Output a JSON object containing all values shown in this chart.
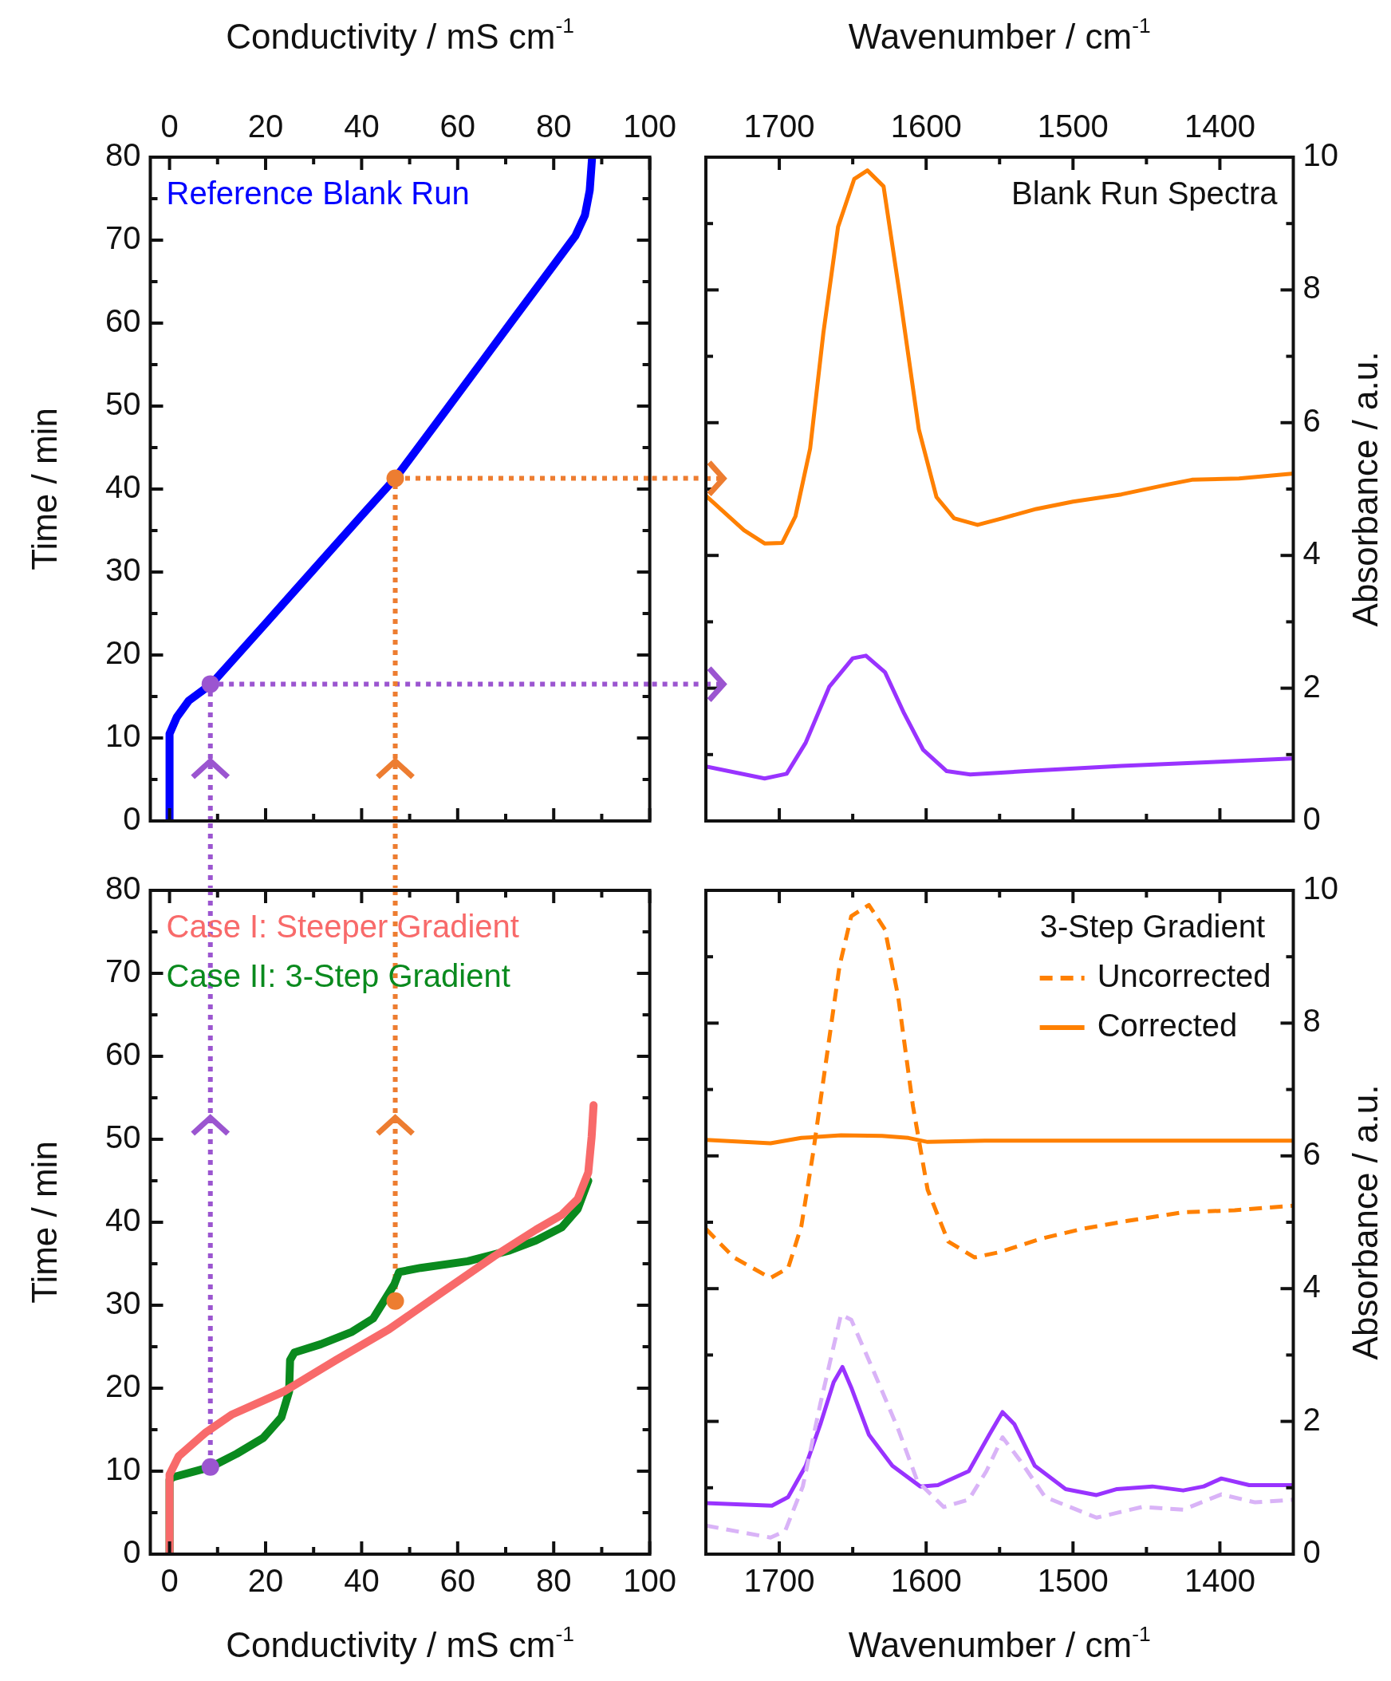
{
  "chart_data": [
    {
      "type": "line",
      "xlabel": "Conductivity / mS cm$^{-1}$",
      "ylabel": "Time / min",
      "xlim": [
        -4,
        100
      ],
      "xticks": [
        0,
        {
          "value": 10,
          "label": null
        },
        20,
        {
          "value": 30,
          "label": null
        },
        40,
        {
          "value": 50,
          "label": null
        },
        60,
        {
          "value": 70,
          "label": null
        },
        80,
        {
          "value": 90,
          "label": null
        },
        100
      ],
      "ylim": [
        0,
        80
      ],
      "yticks": [
        0,
        {
          "value": 5,
          "label": null
        },
        10,
        {
          "value": 15,
          "label": null
        },
        20,
        {
          "value": 25,
          "label": null
        },
        30,
        {
          "value": 35,
          "label": null
        },
        40,
        {
          "value": 45,
          "label": null
        },
        50,
        {
          "value": 55,
          "label": null
        },
        60,
        {
          "value": 65,
          "label": null
        },
        70,
        {
          "value": 75,
          "label": null
        },
        80
      ],
      "legend": "top left",
      "series": [
        {
          "name": "Reference Blank Run",
          "color": "#0000ff",
          "x": [
            0,
            0,
            1.5,
            4,
            8.7,
            20,
            30,
            40,
            47,
            55,
            65,
            71,
            80,
            84.5,
            86.5,
            87.5,
            88
          ],
          "values": [
            0,
            10.5,
            12.5,
            14.5,
            16.5,
            23.8,
            30.3,
            36.8,
            41.3,
            47.5,
            55.3,
            60,
            67,
            70.5,
            73,
            76,
            80
          ]
        },
        {
          "type": "scatter",
          "marker": "circle",
          "color": "#ed7d31",
          "x": [
            47
          ],
          "values": [
            41.3
          ]
        },
        {
          "type": "scatter",
          "marker": "circle",
          "color": "#9b55d0",
          "x": [
            8.5
          ],
          "values": [
            16.5
          ]
        },
        {
          "line_style": "dotted",
          "color": "#ed7d31",
          "x": [
            47,
            47,
            100
          ],
          "values": [
            0,
            41.3,
            41.3
          ]
        },
        {
          "line_style": "dotted",
          "color": "#9b55d0",
          "x": [
            8.5,
            8.5,
            100
          ],
          "values": [
            0,
            16.5,
            16.5
          ]
        }
      ]
    },
    {
      "type": "line",
      "xlabel": "Wavenumber / cm$^{-1}$",
      "ylabel": "Absorbance / a.u.",
      "xlim": [
        1750,
        1350
      ],
      "xticks": [
        1700,
        {
          "value": 1650,
          "label": null
        },
        1600,
        {
          "value": 1550,
          "label": null
        },
        1500,
        {
          "value": 1450,
          "label": null
        },
        1400
      ],
      "ylim": [
        0,
        10
      ],
      "yticks": [
        0,
        {
          "value": 1,
          "label": null
        },
        2,
        {
          "value": 3,
          "label": null
        },
        4,
        {
          "value": 5,
          "label": null
        },
        6,
        {
          "value": 7,
          "label": null
        },
        8,
        {
          "value": 9,
          "label": null
        },
        10
      ],
      "annotations": [
        "Blank Run Spectra"
      ],
      "series": [
        {
          "color": "#ff8000",
          "x": [
            1750,
            1724,
            1710,
            1698,
            1689,
            1679,
            1670,
            1660,
            1649,
            1640,
            1629,
            1618,
            1605,
            1593,
            1581,
            1565,
            1548,
            1525,
            1500,
            1467,
            1435,
            1419,
            1387,
            1351
          ],
          "values": [
            4.9,
            4.38,
            4.18,
            4.19,
            4.59,
            5.61,
            7.35,
            8.95,
            9.67,
            9.8,
            9.56,
            7.93,
            5.9,
            4.88,
            4.56,
            4.46,
            4.56,
            4.7,
            4.81,
            4.92,
            5.07,
            5.14,
            5.16,
            5.23
          ]
        },
        {
          "color": "#9933ff",
          "x": [
            1750,
            1710,
            1695,
            1682,
            1666,
            1650,
            1641,
            1628,
            1615,
            1602,
            1586,
            1570,
            1532,
            1467,
            1403,
            1351
          ],
          "values": [
            0.82,
            0.64,
            0.71,
            1.18,
            2.02,
            2.45,
            2.49,
            2.24,
            1.62,
            1.07,
            0.75,
            0.7,
            0.75,
            0.83,
            0.89,
            0.94
          ]
        },
        {
          "line_style": "dotted",
          "color": "#ed7d31",
          "x": [
            1750,
            1738
          ],
          "values": [
            5.16,
            5.16
          ]
        },
        {
          "line_style": "dotted",
          "color": "#9b55d0",
          "x": [
            1750,
            1738
          ],
          "values": [
            2.06,
            2.06
          ]
        }
      ]
    },
    {
      "type": "line",
      "xlabel": "Conductivity / mS cm$^{-1}$",
      "ylabel": "Time / min",
      "xlim": [
        -4,
        100
      ],
      "xticks": [
        0,
        {
          "value": 10,
          "label": null
        },
        20,
        {
          "value": 30,
          "label": null
        },
        40,
        {
          "value": 50,
          "label": null
        },
        60,
        {
          "value": 70,
          "label": null
        },
        80,
        {
          "value": 90,
          "label": null
        },
        100
      ],
      "ylim": [
        0,
        80
      ],
      "yticks": [
        0,
        {
          "value": 5,
          "label": null
        },
        10,
        {
          "value": 15,
          "label": null
        },
        20,
        {
          "value": 25,
          "label": null
        },
        30,
        {
          "value": 35,
          "label": null
        },
        40,
        {
          "value": 45,
          "label": null
        },
        50,
        {
          "value": 55,
          "label": null
        },
        60,
        {
          "value": 65,
          "label": null
        },
        70,
        {
          "value": 75,
          "label": null
        },
        80
      ],
      "legend": "top left",
      "series": [
        {
          "name": "Case I: Steeper Gradient",
          "color": "#f86a6a",
          "x": [
            0,
            0,
            1.9,
            7.4,
            12.9,
            23.8,
            34.7,
            45.7,
            56.6,
            67.6,
            76.3,
            81.7,
            85,
            87.2,
            87.9,
            88.3
          ],
          "values": [
            0,
            9.6,
            11.8,
            14.6,
            16.8,
            19.6,
            23.4,
            27.1,
            31.5,
            35.9,
            39.1,
            40.9,
            42.8,
            46,
            50.3,
            54.1
          ]
        },
        {
          "name": "Case II: 3-Step Gradient",
          "color": "#0a8a1e",
          "x": [
            0,
            0,
            0.9,
            8.6,
            14,
            19.5,
            23.3,
            24.9,
            25.1,
            26,
            31.5,
            38,
            42.4,
            46.8,
            47.8,
            52.3,
            62.1,
            70.8,
            76.3,
            81.7,
            85,
            87.2
          ],
          "values": [
            0,
            9,
            9.3,
            10.5,
            12.1,
            14,
            16.5,
            19.6,
            23.4,
            24.3,
            25.3,
            26.8,
            28.4,
            32.5,
            34,
            34.5,
            35.3,
            36.6,
            37.8,
            39.4,
            41.6,
            45
          ]
        },
        {
          "type": "scatter",
          "marker": "circle",
          "color": "#ed7d31",
          "x": [
            47
          ],
          "values": [
            30.5
          ]
        },
        {
          "type": "scatter",
          "marker": "circle",
          "color": "#9b55d0",
          "x": [
            8.5
          ],
          "values": [
            10.5
          ]
        },
        {
          "line_style": "dotted",
          "color": "#ed7d31",
          "x": [
            47,
            47
          ],
          "values": [
            80,
            30.5
          ]
        },
        {
          "line_style": "dotted",
          "color": "#9b55d0",
          "x": [
            8.5,
            8.5
          ],
          "values": [
            80,
            10.5
          ]
        }
      ]
    },
    {
      "type": "line",
      "xlabel": "Wavenumber / cm$^{-1}$",
      "ylabel": "Absorbance / a.u.",
      "xlim": [
        1750,
        1350
      ],
      "xticks": [
        1700,
        {
          "value": 1650,
          "label": null
        },
        1600,
        {
          "value": 1550,
          "label": null
        },
        1500,
        {
          "value": 1450,
          "label": null
        },
        1400
      ],
      "ylim": [
        0,
        10
      ],
      "yticks": [
        0,
        {
          "value": 1,
          "label": null
        },
        2,
        {
          "value": 3,
          "label": null
        },
        4,
        {
          "value": 5,
          "label": null
        },
        6,
        {
          "value": 7,
          "label": null
        },
        8,
        {
          "value": 9,
          "label": null
        },
        10
      ],
      "legend": "top right",
      "legend_title": "3-Step Gradient",
      "series": [
        {
          "name": "Uncorrected",
          "line_style": "dashed",
          "color": "#ff8000",
          "x": [
            1750,
            1731,
            1706,
            1694,
            1685,
            1677,
            1668,
            1659,
            1651,
            1639,
            1628,
            1619,
            1609,
            1599,
            1585,
            1567,
            1550,
            1522,
            1494,
            1463,
            1425,
            1390,
            1350
          ],
          "values": [
            4.9,
            4.47,
            4.16,
            4.31,
            4.94,
            6.04,
            7.45,
            8.86,
            9.61,
            9.78,
            9.41,
            8.39,
            6.75,
            5.49,
            4.71,
            4.47,
            4.55,
            4.75,
            4.9,
            5.02,
            5.15,
            5.18,
            5.25
          ]
        },
        {
          "name": "Corrected",
          "line_style": "solid",
          "color": "#ff8000",
          "x": [
            1750,
            1706,
            1685,
            1658,
            1630,
            1612,
            1599,
            1560,
            1450,
            1350
          ],
          "values": [
            6.24,
            6.19,
            6.27,
            6.31,
            6.3,
            6.27,
            6.21,
            6.23,
            6.23,
            6.23
          ]
        },
        {
          "line_style": "dashed",
          "color": "#d9b3f7",
          "x": [
            1750,
            1706,
            1696,
            1684,
            1672,
            1658,
            1651,
            1637,
            1619,
            1606,
            1588,
            1571,
            1559,
            1548,
            1536,
            1519,
            1484,
            1453,
            1425,
            1399,
            1376,
            1350
          ],
          "values": [
            0.43,
            0.25,
            0.35,
            1.02,
            2.27,
            3.61,
            3.53,
            2.82,
            1.88,
            1.1,
            0.71,
            0.82,
            1.25,
            1.76,
            1.41,
            0.86,
            0.55,
            0.71,
            0.67,
            0.9,
            0.78,
            0.82
          ]
        },
        {
          "line_style": "solid",
          "color": "#9933ff",
          "x": [
            1750,
            1705,
            1694,
            1682,
            1672,
            1663,
            1657,
            1651,
            1639,
            1623,
            1604,
            1592,
            1571,
            1557,
            1548,
            1540,
            1526,
            1505,
            1484,
            1470,
            1446,
            1425,
            1411,
            1399,
            1380,
            1350
          ],
          "values": [
            0.77,
            0.73,
            0.86,
            1.33,
            1.96,
            2.59,
            2.82,
            2.51,
            1.8,
            1.33,
            1.02,
            1.04,
            1.25,
            1.8,
            2.14,
            1.96,
            1.33,
            0.98,
            0.89,
            0.98,
            1.02,
            0.96,
            1.02,
            1.14,
            1.04,
            1.04
          ]
        }
      ]
    }
  ]
}
